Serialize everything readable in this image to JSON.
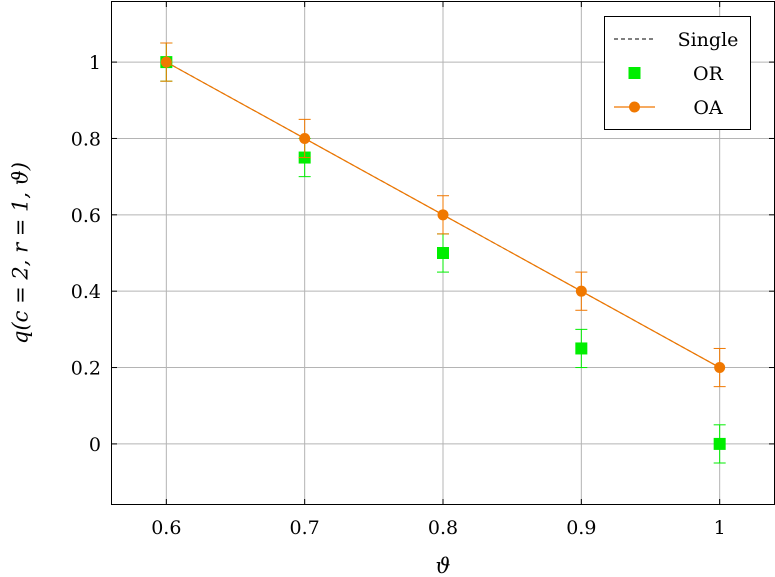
{
  "chart_data": {
    "type": "line",
    "xlabel": "ϑ",
    "ylabel": "q(c = 2, r = 1, ϑ)",
    "xlim": [
      0.56,
      1.04
    ],
    "ylim": [
      -0.16,
      1.16
    ],
    "x_ticks": [
      0.6,
      0.7,
      0.8,
      0.9,
      1.0
    ],
    "x_tick_labels": [
      "0.6",
      "0.7",
      "0.8",
      "0.9",
      "1"
    ],
    "y_ticks": [
      0,
      0.2,
      0.4,
      0.6,
      0.8,
      1.0
    ],
    "y_tick_labels": [
      "0",
      "0.2",
      "0.4",
      "0.6",
      "0.8",
      "1"
    ],
    "grid": true,
    "legend_position": "top-right",
    "series": [
      {
        "name": "Single",
        "style": "dashed-line",
        "color": "#000000",
        "x": [
          0.6,
          0.7,
          0.8,
          0.9,
          1.0
        ],
        "y": [
          1.0,
          0.8,
          0.6,
          0.4,
          0.2
        ]
      },
      {
        "name": "OR",
        "style": "square-markers",
        "color": "#00ee00",
        "x": [
          0.6,
          0.7,
          0.8,
          0.9,
          1.0
        ],
        "y": [
          1.0,
          0.75,
          0.5,
          0.25,
          0.0
        ],
        "error": [
          0.05,
          0.05,
          0.05,
          0.05,
          0.05
        ]
      },
      {
        "name": "OA",
        "style": "line-with-circles",
        "color": "#f07800",
        "x": [
          0.6,
          0.7,
          0.8,
          0.9,
          1.0
        ],
        "y": [
          1.0,
          0.8,
          0.6,
          0.4,
          0.2
        ],
        "error": [
          0.05,
          0.05,
          0.05,
          0.05,
          0.05
        ]
      }
    ]
  }
}
